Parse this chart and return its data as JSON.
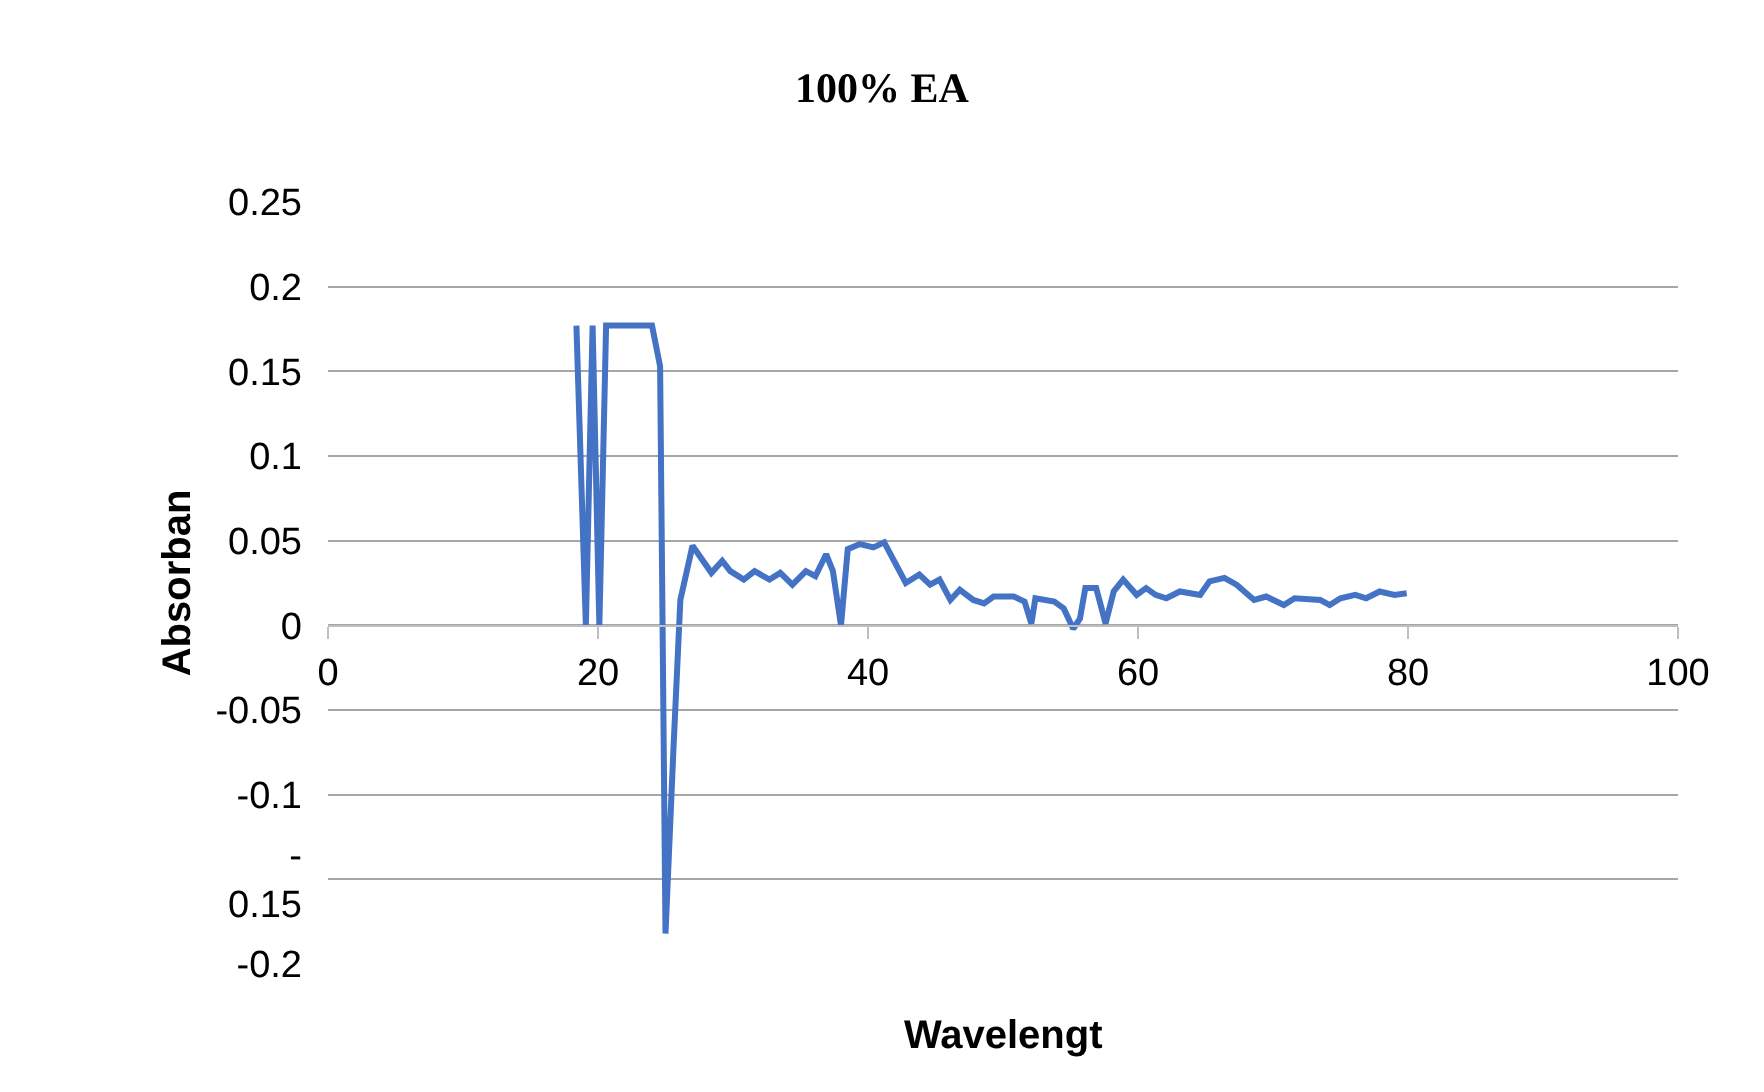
{
  "chart_data": {
    "type": "line",
    "title": "100% EA",
    "xlabel": "Wavelengt",
    "ylabel": "Absorban",
    "x": [
      18.4,
      19.1,
      19.6,
      20.1,
      20.6,
      24.0,
      24.6,
      25.0,
      25.6,
      26.1,
      27.0,
      28.4,
      29.2,
      29.8,
      30.8,
      31.6,
      32.7,
      33.5,
      34.4,
      35.4,
      36.1,
      36.9,
      37.4,
      38.0,
      38.5,
      39.4,
      40.4,
      41.2,
      42.8,
      43.8,
      44.6,
      45.3,
      46.1,
      46.8,
      47.8,
      48.6,
      49.3,
      50.8,
      51.6,
      52.1,
      52.4,
      53.8,
      54.5,
      55.2,
      55.7,
      56.1,
      56.9,
      57.6,
      58.2,
      58.9,
      59.9,
      60.6,
      61.3,
      62.1,
      63.1,
      64.6,
      65.3,
      66.4,
      67.3,
      68.6,
      69.5,
      70.8,
      71.6,
      73.5,
      74.2,
      75.0,
      76.1,
      76.9,
      77.9,
      79.0,
      79.9
    ],
    "series": [
      {
        "color": "#4472c4",
        "values": [
          0.177,
          0,
          0.177,
          0,
          0.177,
          0.177,
          0.153,
          -0.182,
          -0.071,
          0.015,
          0.047,
          0.031,
          0.038,
          0.032,
          0.027,
          0.032,
          0.027,
          0.031,
          0.024,
          0.032,
          0.029,
          0.042,
          0.032,
          0,
          0.045,
          0.048,
          0.046,
          0.049,
          0.025,
          0.03,
          0.024,
          0.027,
          0.015,
          0.021,
          0.015,
          0.013,
          0.017,
          0.017,
          0.014,
          0.001,
          0.016,
          0.014,
          0.01,
          -0.002,
          0.004,
          0.022,
          0.022,
          0.001,
          0.02,
          0.027,
          0.018,
          0.022,
          0.018,
          0.016,
          0.02,
          0.018,
          0.026,
          0.028,
          0.024,
          0.015,
          0.017,
          0.012,
          0.016,
          0.015,
          0.012,
          0.016,
          0.018,
          0.016,
          0.02,
          0.018,
          0.019
        ]
      }
    ],
    "xlim": [
      0,
      100
    ],
    "xticks": [
      0,
      20,
      40,
      60,
      80,
      100
    ],
    "ylim": [
      -0.2,
      0.25
    ],
    "yticks": [
      0.25,
      0.2,
      0.15,
      0.1,
      0.05,
      0,
      -0.05,
      -0.1,
      {
        "value": -0.15,
        "label": "-\n0.15"
      },
      -0.2
    ],
    "grid": "y",
    "legend": false,
    "marker": "none",
    "line_style": "solid"
  }
}
